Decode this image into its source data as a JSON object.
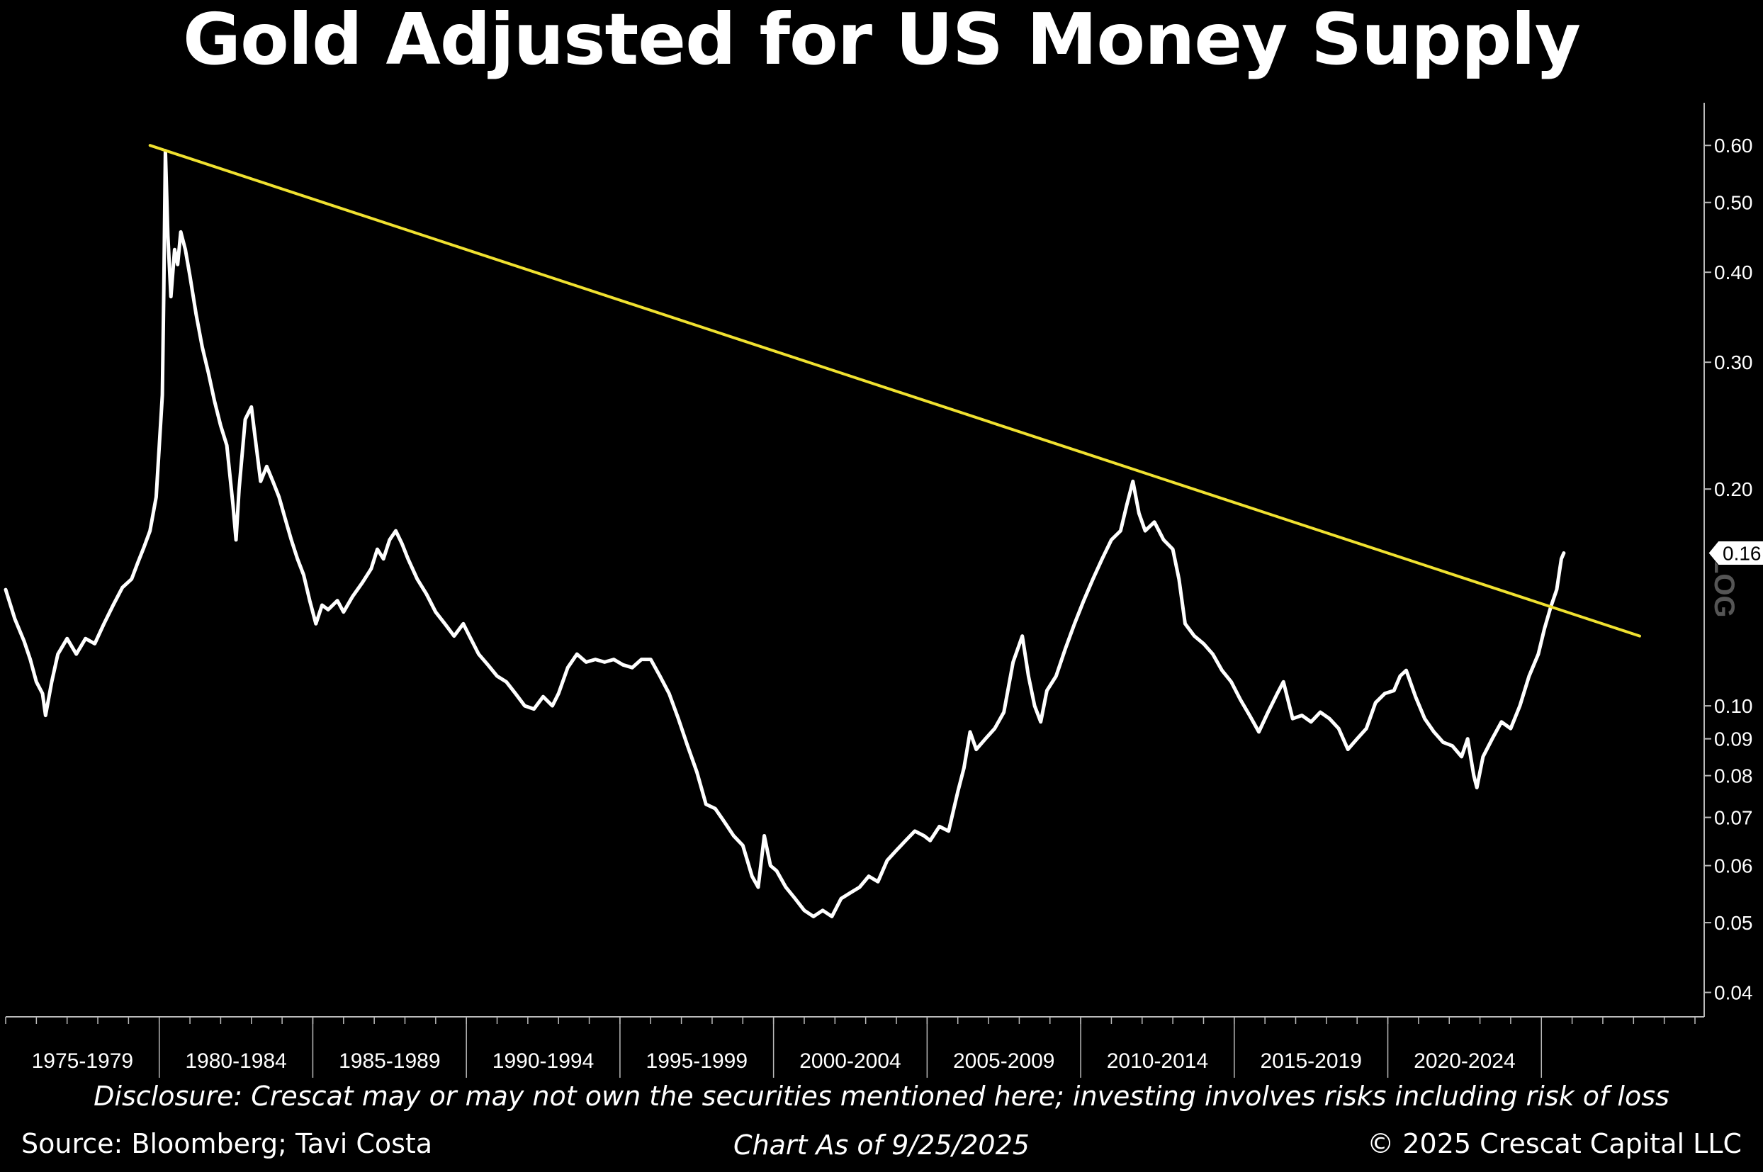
{
  "chart_data": {
    "type": "line",
    "title": "Gold Adjusted for US Money Supply",
    "y_scale": "log",
    "ylim": [
      0.037,
      0.68
    ],
    "yticks": [
      0.04,
      0.05,
      0.06,
      0.07,
      0.08,
      0.09,
      0.1,
      0.2,
      0.3,
      0.4,
      0.5,
      0.6
    ],
    "ytick_labels": [
      "0.04",
      "0.05",
      "0.06",
      "0.07",
      "0.08",
      "0.09",
      "0.10",
      "0.20",
      "0.30",
      "0.40",
      "0.50",
      "0.60"
    ],
    "axis_side": "right",
    "scale_marker": "LOG",
    "xlim": [
      1975.0,
      2030.3
    ],
    "x_period_labels": [
      "1975-1979",
      "1980-1984",
      "1985-1989",
      "1990-1994",
      "1995-1999",
      "2000-2004",
      "2005-2009",
      "2010-2014",
      "2015-2019",
      "2020-2024"
    ],
    "last_value_label": "0.16",
    "series": [
      {
        "color": "#ffffff",
        "points": [
          [
            1975.0,
            0.145
          ],
          [
            1975.3,
            0.132
          ],
          [
            1975.6,
            0.123
          ],
          [
            1975.8,
            0.116
          ],
          [
            1976.0,
            0.108
          ],
          [
            1976.2,
            0.104
          ],
          [
            1976.3,
            0.097
          ],
          [
            1976.5,
            0.108
          ],
          [
            1976.7,
            0.118
          ],
          [
            1977.0,
            0.124
          ],
          [
            1977.3,
            0.118
          ],
          [
            1977.6,
            0.124
          ],
          [
            1977.9,
            0.122
          ],
          [
            1978.2,
            0.13
          ],
          [
            1978.5,
            0.138
          ],
          [
            1978.8,
            0.146
          ],
          [
            1979.1,
            0.15
          ],
          [
            1979.3,
            0.158
          ],
          [
            1979.5,
            0.166
          ],
          [
            1979.7,
            0.175
          ],
          [
            1979.9,
            0.195
          ],
          [
            1980.1,
            0.27
          ],
          [
            1980.15,
            0.38
          ],
          [
            1980.2,
            0.59
          ],
          [
            1980.28,
            0.45
          ],
          [
            1980.38,
            0.37
          ],
          [
            1980.5,
            0.43
          ],
          [
            1980.6,
            0.41
          ],
          [
            1980.7,
            0.455
          ],
          [
            1980.85,
            0.43
          ],
          [
            1981.0,
            0.395
          ],
          [
            1981.2,
            0.35
          ],
          [
            1981.4,
            0.315
          ],
          [
            1981.6,
            0.29
          ],
          [
            1981.8,
            0.265
          ],
          [
            1982.0,
            0.245
          ],
          [
            1982.2,
            0.23
          ],
          [
            1982.4,
            0.19
          ],
          [
            1982.5,
            0.17
          ],
          [
            1982.6,
            0.2
          ],
          [
            1982.8,
            0.25
          ],
          [
            1983.0,
            0.26
          ],
          [
            1983.1,
            0.24
          ],
          [
            1983.3,
            0.205
          ],
          [
            1983.5,
            0.215
          ],
          [
            1983.7,
            0.205
          ],
          [
            1983.9,
            0.195
          ],
          [
            1984.1,
            0.182
          ],
          [
            1984.3,
            0.17
          ],
          [
            1984.5,
            0.16
          ],
          [
            1984.7,
            0.152
          ],
          [
            1984.9,
            0.14
          ],
          [
            1985.1,
            0.13
          ],
          [
            1985.3,
            0.138
          ],
          [
            1985.5,
            0.136
          ],
          [
            1985.8,
            0.14
          ],
          [
            1986.0,
            0.135
          ],
          [
            1986.3,
            0.142
          ],
          [
            1986.6,
            0.148
          ],
          [
            1986.9,
            0.155
          ],
          [
            1987.1,
            0.165
          ],
          [
            1987.3,
            0.16
          ],
          [
            1987.5,
            0.17
          ],
          [
            1987.7,
            0.175
          ],
          [
            1987.9,
            0.168
          ],
          [
            1988.1,
            0.16
          ],
          [
            1988.4,
            0.15
          ],
          [
            1988.7,
            0.143
          ],
          [
            1989.0,
            0.135
          ],
          [
            1989.3,
            0.13
          ],
          [
            1989.6,
            0.125
          ],
          [
            1989.9,
            0.13
          ],
          [
            1990.1,
            0.125
          ],
          [
            1990.4,
            0.118
          ],
          [
            1990.7,
            0.114
          ],
          [
            1991.0,
            0.11
          ],
          [
            1991.3,
            0.108
          ],
          [
            1991.6,
            0.104
          ],
          [
            1991.9,
            0.1
          ],
          [
            1992.2,
            0.099
          ],
          [
            1992.5,
            0.103
          ],
          [
            1992.8,
            0.1
          ],
          [
            1993.0,
            0.104
          ],
          [
            1993.3,
            0.113
          ],
          [
            1993.6,
            0.118
          ],
          [
            1993.9,
            0.115
          ],
          [
            1994.2,
            0.116
          ],
          [
            1994.5,
            0.115
          ],
          [
            1994.8,
            0.116
          ],
          [
            1995.1,
            0.114
          ],
          [
            1995.4,
            0.113
          ],
          [
            1995.7,
            0.116
          ],
          [
            1996.0,
            0.116
          ],
          [
            1996.3,
            0.11
          ],
          [
            1996.6,
            0.104
          ],
          [
            1996.9,
            0.096
          ],
          [
            1997.2,
            0.088
          ],
          [
            1997.5,
            0.081
          ],
          [
            1997.8,
            0.073
          ],
          [
            1998.1,
            0.072
          ],
          [
            1998.4,
            0.069
          ],
          [
            1998.7,
            0.066
          ],
          [
            1999.0,
            0.064
          ],
          [
            1999.3,
            0.058
          ],
          [
            1999.5,
            0.056
          ],
          [
            1999.7,
            0.066
          ],
          [
            1999.9,
            0.06
          ],
          [
            2000.1,
            0.059
          ],
          [
            2000.4,
            0.056
          ],
          [
            2000.7,
            0.054
          ],
          [
            2001.0,
            0.052
          ],
          [
            2001.3,
            0.051
          ],
          [
            2001.6,
            0.052
          ],
          [
            2001.9,
            0.051
          ],
          [
            2002.2,
            0.054
          ],
          [
            2002.5,
            0.055
          ],
          [
            2002.8,
            0.056
          ],
          [
            2003.1,
            0.058
          ],
          [
            2003.4,
            0.057
          ],
          [
            2003.7,
            0.061
          ],
          [
            2004.0,
            0.063
          ],
          [
            2004.3,
            0.065
          ],
          [
            2004.6,
            0.067
          ],
          [
            2004.9,
            0.066
          ],
          [
            2005.1,
            0.065
          ],
          [
            2005.4,
            0.068
          ],
          [
            2005.7,
            0.067
          ],
          [
            2006.0,
            0.076
          ],
          [
            2006.2,
            0.082
          ],
          [
            2006.4,
            0.092
          ],
          [
            2006.6,
            0.087
          ],
          [
            2006.9,
            0.09
          ],
          [
            2007.2,
            0.093
          ],
          [
            2007.5,
            0.098
          ],
          [
            2007.8,
            0.115
          ],
          [
            2008.1,
            0.125
          ],
          [
            2008.3,
            0.11
          ],
          [
            2008.5,
            0.1
          ],
          [
            2008.7,
            0.095
          ],
          [
            2008.9,
            0.105
          ],
          [
            2009.2,
            0.11
          ],
          [
            2009.5,
            0.12
          ],
          [
            2009.8,
            0.13
          ],
          [
            2010.1,
            0.14
          ],
          [
            2010.4,
            0.15
          ],
          [
            2010.7,
            0.16
          ],
          [
            2011.0,
            0.17
          ],
          [
            2011.3,
            0.175
          ],
          [
            2011.5,
            0.19
          ],
          [
            2011.7,
            0.205
          ],
          [
            2011.9,
            0.185
          ],
          [
            2012.1,
            0.175
          ],
          [
            2012.4,
            0.18
          ],
          [
            2012.7,
            0.17
          ],
          [
            2013.0,
            0.165
          ],
          [
            2013.2,
            0.15
          ],
          [
            2013.4,
            0.13
          ],
          [
            2013.7,
            0.125
          ],
          [
            2014.0,
            0.122
          ],
          [
            2014.3,
            0.118
          ],
          [
            2014.6,
            0.112
          ],
          [
            2014.9,
            0.108
          ],
          [
            2015.2,
            0.102
          ],
          [
            2015.5,
            0.097
          ],
          [
            2015.8,
            0.092
          ],
          [
            2016.1,
            0.098
          ],
          [
            2016.4,
            0.104
          ],
          [
            2016.6,
            0.108
          ],
          [
            2016.9,
            0.096
          ],
          [
            2017.2,
            0.097
          ],
          [
            2017.5,
            0.095
          ],
          [
            2017.8,
            0.098
          ],
          [
            2018.1,
            0.096
          ],
          [
            2018.4,
            0.093
          ],
          [
            2018.7,
            0.087
          ],
          [
            2019.0,
            0.09
          ],
          [
            2019.3,
            0.093
          ],
          [
            2019.6,
            0.101
          ],
          [
            2019.9,
            0.104
          ],
          [
            2020.2,
            0.105
          ],
          [
            2020.4,
            0.11
          ],
          [
            2020.6,
            0.112
          ],
          [
            2020.9,
            0.103
          ],
          [
            2021.2,
            0.096
          ],
          [
            2021.5,
            0.092
          ],
          [
            2021.8,
            0.089
          ],
          [
            2022.1,
            0.088
          ],
          [
            2022.4,
            0.085
          ],
          [
            2022.6,
            0.09
          ],
          [
            2022.8,
            0.08
          ],
          [
            2022.9,
            0.077
          ],
          [
            2023.1,
            0.085
          ],
          [
            2023.4,
            0.09
          ],
          [
            2023.7,
            0.095
          ],
          [
            2024.0,
            0.093
          ],
          [
            2024.3,
            0.1
          ],
          [
            2024.6,
            0.11
          ],
          [
            2024.9,
            0.118
          ],
          [
            2025.1,
            0.128
          ],
          [
            2025.3,
            0.137
          ],
          [
            2025.5,
            0.145
          ],
          [
            2025.65,
            0.16
          ],
          [
            2025.73,
            0.163
          ]
        ]
      },
      {
        "color": "#f0e130",
        "points": [
          [
            1979.7,
            0.6
          ],
          [
            2028.2,
            0.125
          ]
        ]
      }
    ]
  },
  "footer": {
    "disclosure": "Disclosure: Crescat may or may not own the securities mentioned here; investing involves risks including risk of loss",
    "source": "Source: Bloomberg; Tavi Costa",
    "as_of": "Chart As of 9/25/2025",
    "copyright": "© 2025 Crescat Capital LLC"
  }
}
